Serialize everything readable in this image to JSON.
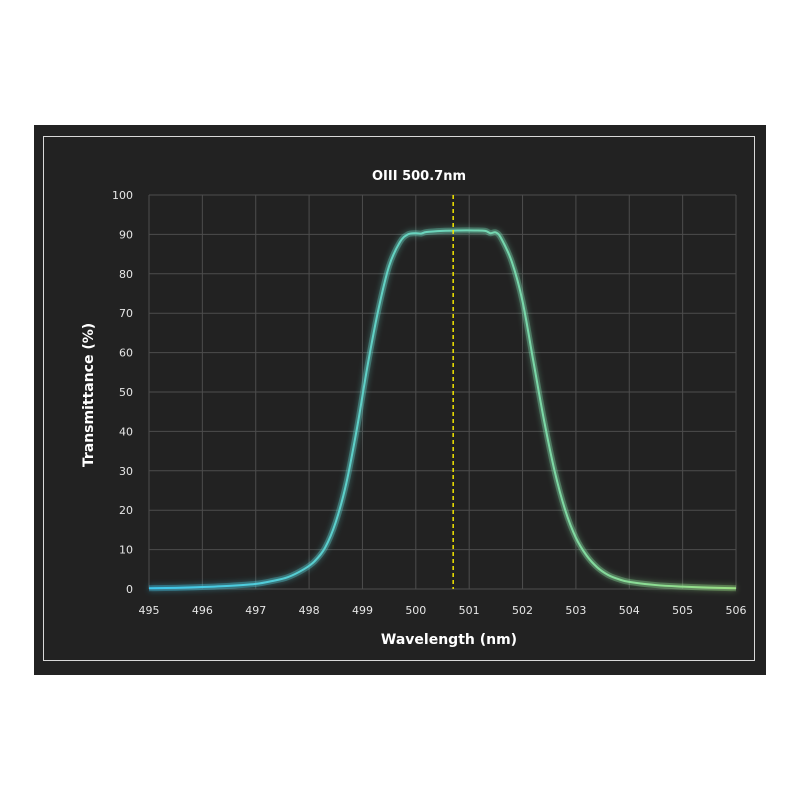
{
  "chart_data": {
    "type": "line",
    "title": "OIII 500.7nm",
    "xlabel": "Wavelength (nm)",
    "ylabel": "Transmittance (%)",
    "xlim": [
      495,
      506
    ],
    "ylim": [
      0,
      100
    ],
    "x_ticks": [
      495,
      496,
      497,
      498,
      499,
      500,
      501,
      502,
      503,
      504,
      505,
      506
    ],
    "y_ticks": [
      0,
      10,
      20,
      30,
      40,
      50,
      60,
      70,
      80,
      90,
      100
    ],
    "grid": true,
    "center_wavelength": 500.7,
    "series": [
      {
        "color_start": "#3fc8ee",
        "color_end": "#9ae084",
        "x": [
          495.0,
          495.5,
          496.0,
          496.5,
          497.0,
          497.3,
          497.6,
          497.9,
          498.1,
          498.3,
          498.5,
          498.7,
          498.9,
          499.1,
          499.3,
          499.5,
          499.7,
          499.85,
          500.0,
          500.1,
          500.2,
          500.5,
          500.8,
          501.1,
          501.3,
          501.4,
          501.5,
          501.6,
          501.8,
          502.0,
          502.2,
          502.4,
          502.6,
          502.8,
          503.0,
          503.2,
          503.4,
          503.6,
          503.8,
          504.0,
          504.5,
          505.0,
          505.5,
          506.0
        ],
        "y": [
          0.2,
          0.3,
          0.5,
          0.8,
          1.3,
          2.0,
          3.0,
          5.0,
          7.0,
          10.5,
          17.0,
          27.0,
          41.0,
          57.0,
          71.0,
          82.0,
          88.0,
          90.0,
          90.3,
          90.2,
          90.6,
          90.9,
          91.0,
          91.0,
          90.9,
          90.3,
          90.5,
          89.0,
          83.0,
          73.0,
          58.0,
          43.0,
          30.0,
          20.0,
          13.0,
          8.5,
          5.5,
          3.6,
          2.5,
          1.8,
          1.0,
          0.6,
          0.35,
          0.2
        ]
      }
    ],
    "colors": {
      "background": "#222222",
      "grid": "#4d4d4d",
      "center_line": "#f2e600"
    }
  }
}
